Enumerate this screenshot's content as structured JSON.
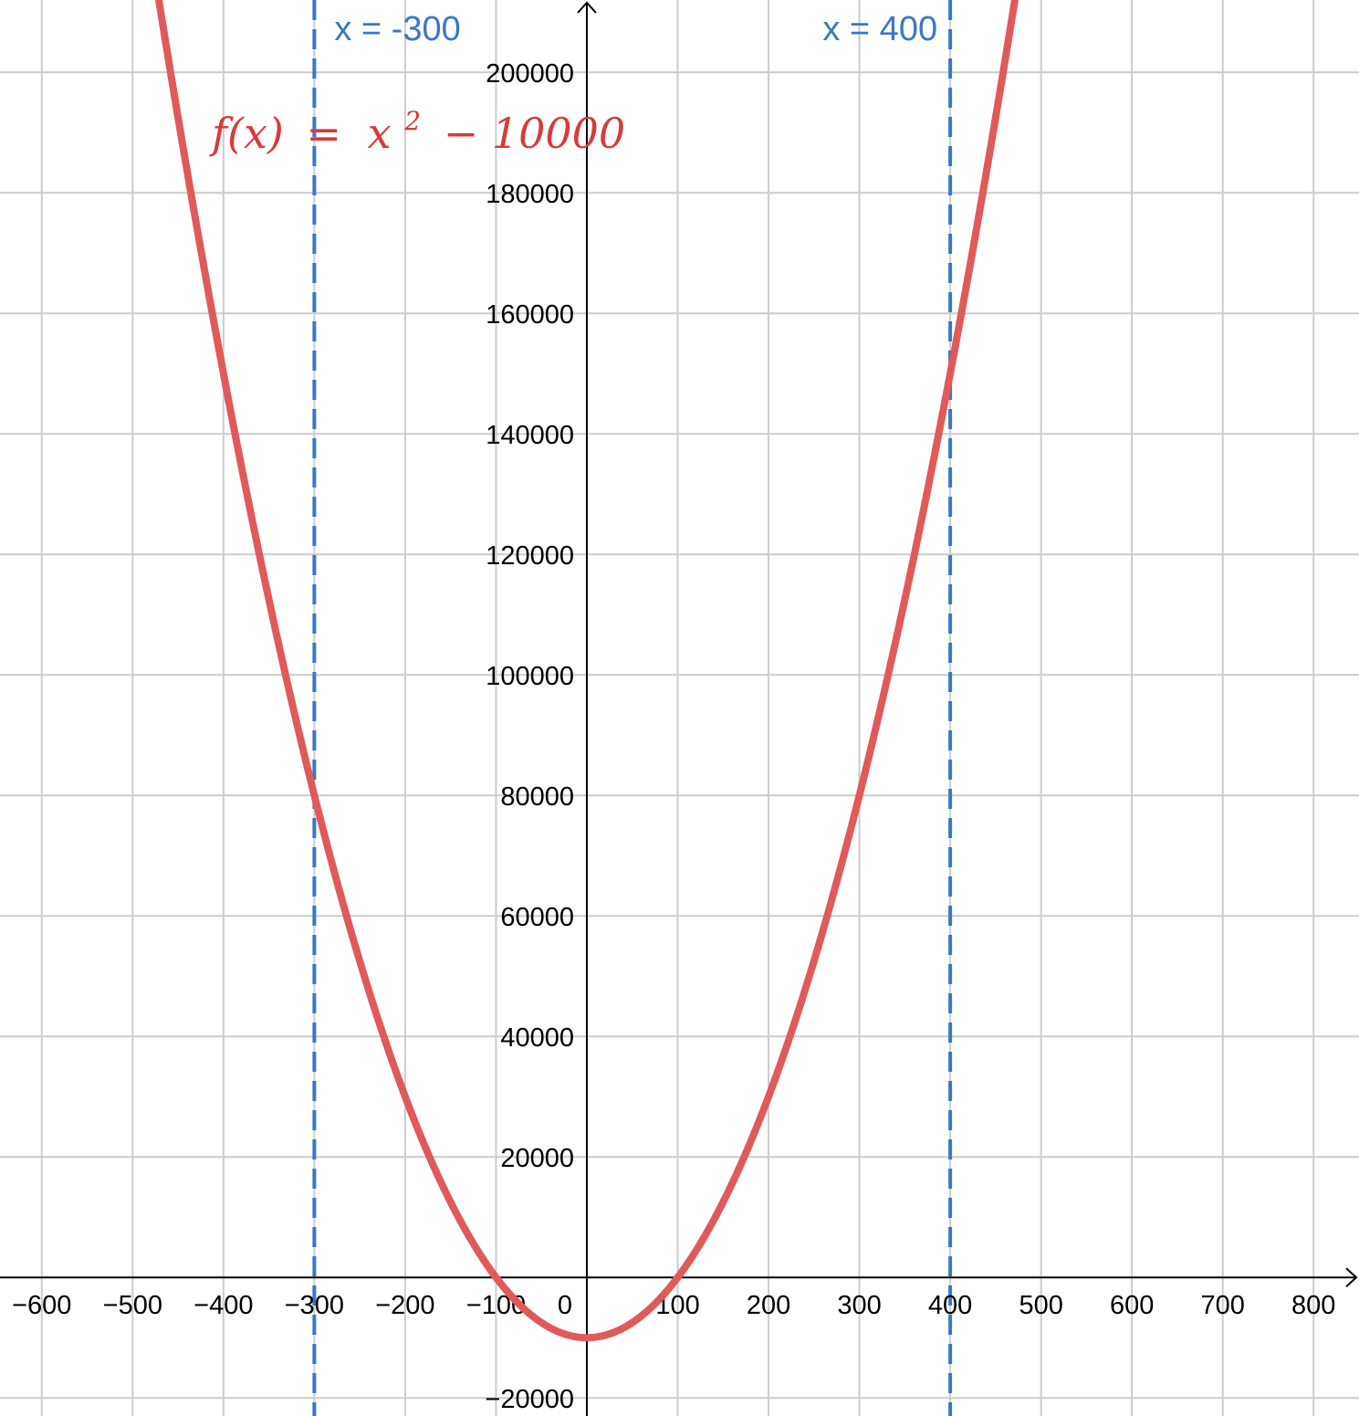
{
  "chart_data": {
    "type": "line",
    "function": {
      "label_text": "f(x) = x² − 10000",
      "label_parts": {
        "lhs": "f(x)",
        "equals": "=",
        "base": "x",
        "exponent": "2",
        "rest": "− 10000"
      },
      "expression": "x^2 - 10000",
      "color": "#e05a5a"
    },
    "vertical_lines": [
      {
        "x": -300,
        "label": "x = -300",
        "color": "#3a78c3"
      },
      {
        "x": 400,
        "label": "x = 400",
        "color": "#3a78c3"
      }
    ],
    "xlim": [
      -646,
      850
    ],
    "ylim": [
      -23000,
      212000
    ],
    "x_ticks": [
      {
        "value": -600,
        "label": "−600"
      },
      {
        "value": -500,
        "label": "−500"
      },
      {
        "value": -400,
        "label": "−400"
      },
      {
        "value": -300,
        "label": "−300"
      },
      {
        "value": -200,
        "label": "−200"
      },
      {
        "value": -100,
        "label": "−100"
      },
      {
        "value": 100,
        "label": "100"
      },
      {
        "value": 200,
        "label": "200"
      },
      {
        "value": 300,
        "label": "300"
      },
      {
        "value": 400,
        "label": "400"
      },
      {
        "value": 500,
        "label": "500"
      },
      {
        "value": 600,
        "label": "600"
      },
      {
        "value": 700,
        "label": "700"
      },
      {
        "value": 800,
        "label": "800"
      }
    ],
    "origin_label": "0",
    "y_ticks": [
      {
        "value": -20000,
        "label": "−20000"
      },
      {
        "value": 20000,
        "label": "20000"
      },
      {
        "value": 40000,
        "label": "40000"
      },
      {
        "value": 60000,
        "label": "60000"
      },
      {
        "value": 80000,
        "label": "80000"
      },
      {
        "value": 100000,
        "label": "100000"
      },
      {
        "value": 120000,
        "label": "120000"
      },
      {
        "value": 140000,
        "label": "140000"
      },
      {
        "value": 160000,
        "label": "160000"
      },
      {
        "value": 180000,
        "label": "180000"
      },
      {
        "value": 200000,
        "label": "200000"
      }
    ],
    "grid": true,
    "grid_color": "#cccccc",
    "axis_color": "#000000"
  }
}
